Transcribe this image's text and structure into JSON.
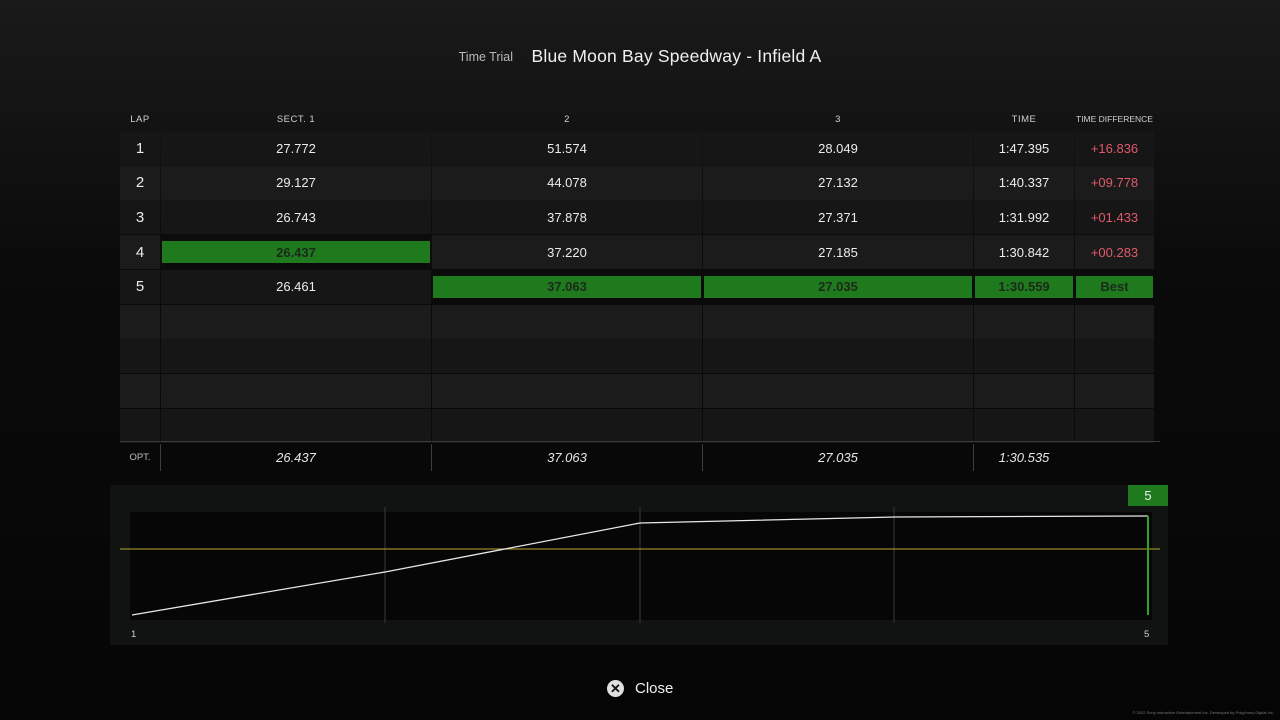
{
  "header": {
    "mode": "Time Trial",
    "track": "Blue Moon Bay Speedway - Infield A"
  },
  "columns": {
    "lap": "LAP",
    "s1": "SECT. 1",
    "s2": "2",
    "s3": "3",
    "time": "TIME",
    "diff": "TIME DIFFERENCE"
  },
  "laps": [
    {
      "lap": "1",
      "s1": "27.772",
      "s2": "51.574",
      "s3": "28.049",
      "time": "1:47.395",
      "diff": "+16.836"
    },
    {
      "lap": "2",
      "s1": "29.127",
      "s2": "44.078",
      "s3": "27.132",
      "time": "1:40.337",
      "diff": "+09.778"
    },
    {
      "lap": "3",
      "s1": "26.743",
      "s2": "37.878",
      "s3": "27.371",
      "time": "1:31.992",
      "diff": "+01.433"
    },
    {
      "lap": "4",
      "s1": "26.437",
      "s2": "37.220",
      "s3": "27.185",
      "time": "1:30.842",
      "diff": "+00.283"
    },
    {
      "lap": "5",
      "s1": "26.461",
      "s2": "37.063",
      "s3": "27.035",
      "time": "1:30.559",
      "diff": "Best"
    }
  ],
  "highlight_color": "#1f7a1d",
  "diff_color": "#e05a6a",
  "optimal": {
    "label": "OPT.",
    "s1": "26.437",
    "s2": "37.063",
    "s3": "27.035",
    "time": "1:30.535"
  },
  "graph": {
    "badge": "5",
    "x_start": "1",
    "x_end": "5"
  },
  "close_button": {
    "icon": "cross-button-icon",
    "label": "Close"
  },
  "copyright": "© 2022 Sony Interactive Entertainment Inc. Developed by Polyphony Digital Inc."
}
